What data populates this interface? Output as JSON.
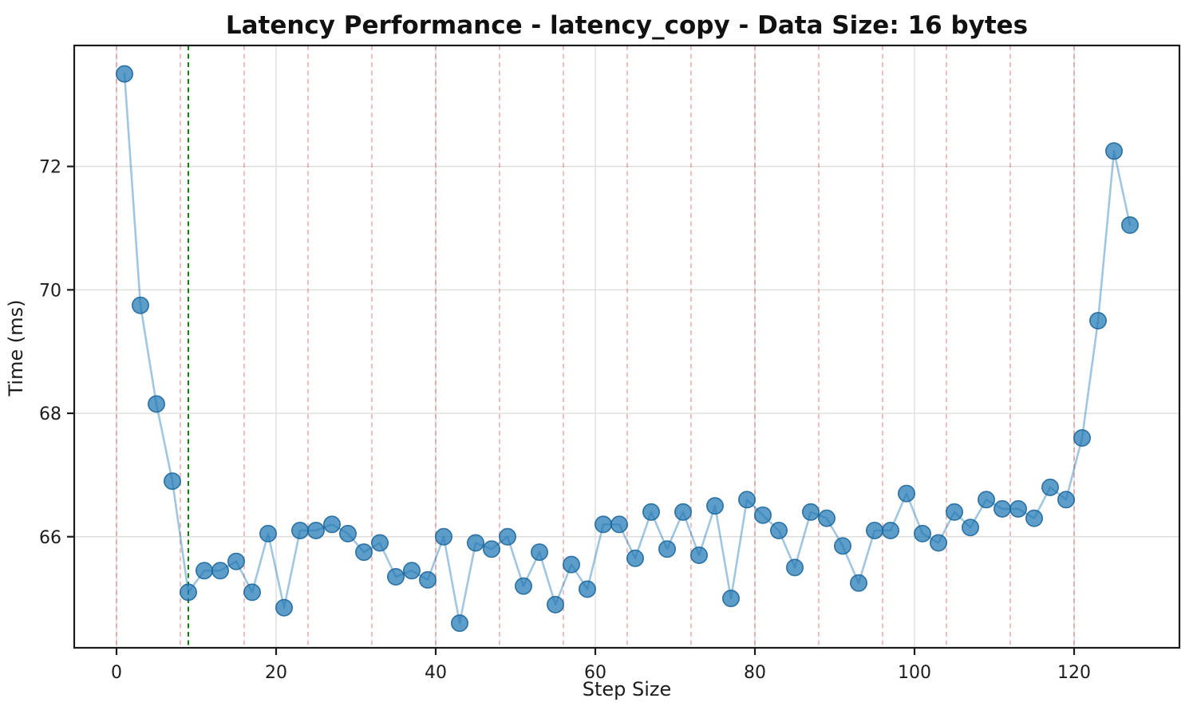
{
  "chart_data": {
    "type": "line",
    "title": "Latency Performance - latency_copy - Data Size: 16 bytes",
    "xlabel": "Step Size",
    "ylabel": "Time (ms)",
    "xlim": [
      -5.3,
      133.2
    ],
    "ylim": [
      64.2,
      73.96
    ],
    "x_ticks": [
      0,
      20,
      40,
      60,
      80,
      100,
      120
    ],
    "y_ticks": [
      66,
      68,
      70,
      72
    ],
    "grid": true,
    "legend": null,
    "red_dashed_vlines": [
      0,
      8,
      16,
      24,
      32,
      40,
      48,
      56,
      64,
      72,
      80,
      88,
      96,
      104,
      112,
      120
    ],
    "green_dashed_vline": 9,
    "series": [
      {
        "name": "latency_copy",
        "x": [
          1,
          3,
          5,
          7,
          9,
          11,
          13,
          15,
          17,
          19,
          21,
          23,
          25,
          27,
          29,
          31,
          33,
          35,
          37,
          39,
          41,
          43,
          45,
          47,
          49,
          51,
          53,
          55,
          57,
          59,
          61,
          63,
          65,
          67,
          69,
          71,
          73,
          75,
          77,
          79,
          81,
          83,
          85,
          87,
          89,
          91,
          93,
          95,
          97,
          99,
          101,
          103,
          105,
          107,
          109,
          111,
          113,
          115,
          117,
          119,
          121,
          123,
          125,
          127
        ],
        "y": [
          73.5,
          69.75,
          68.15,
          66.9,
          65.1,
          65.45,
          65.45,
          65.6,
          65.1,
          66.05,
          64.85,
          66.1,
          66.1,
          66.2,
          66.05,
          65.75,
          65.9,
          65.35,
          65.45,
          65.3,
          66.0,
          64.6,
          65.9,
          65.8,
          66.0,
          65.2,
          65.75,
          64.9,
          65.55,
          65.15,
          66.2,
          66.2,
          65.65,
          66.4,
          65.8,
          66.4,
          65.7,
          66.5,
          65.0,
          66.6,
          66.35,
          66.1,
          65.5,
          66.4,
          66.3,
          65.85,
          65.25,
          66.1,
          66.1,
          66.7,
          66.05,
          65.9,
          66.4,
          66.15,
          66.6,
          66.45,
          66.45,
          66.3,
          66.8,
          66.6,
          67.6,
          69.5,
          72.25,
          71.05
        ]
      }
    ],
    "colors": {
      "line": "rgba(31,119,180,0.42)",
      "marker_fill": "rgba(31,119,180,0.72)",
      "marker_edge": "rgba(23,99,152,0.85)",
      "red_vline": "rgba(214,39,40,0.38)",
      "green_vline": "rgba(0,125,0,0.95)",
      "grid": "#dedede",
      "spine": "#1c1c1c"
    }
  }
}
